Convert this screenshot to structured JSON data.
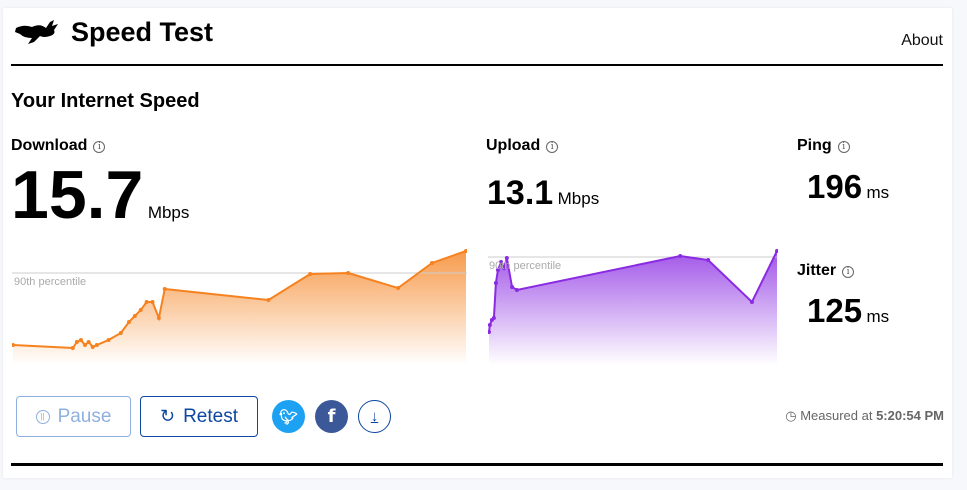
{
  "header": {
    "title": "Speed Test",
    "about": "About",
    "logo": "running-rabbit-icon"
  },
  "section_title": "Your Internet Speed",
  "download": {
    "label": "Download",
    "value": "15.7",
    "unit": "Mbps",
    "percentile_label": "90th percentile"
  },
  "upload": {
    "label": "Upload",
    "value": "13.1",
    "unit": "Mbps",
    "percentile_label": "90th percentile"
  },
  "ping": {
    "label": "Ping",
    "value": "196",
    "unit": "ms"
  },
  "jitter": {
    "label": "Jitter",
    "value": "125",
    "unit": "ms"
  },
  "buttons": {
    "pause": "Pause",
    "retest": "Retest"
  },
  "measured": {
    "prefix": "Measured at",
    "time": "5:20:54 PM"
  },
  "colors": {
    "download": "#f5821f",
    "upload": "#8a2be2",
    "accent": "#0d47a1",
    "twitter": "#1da1f2",
    "facebook": "#3b5998"
  },
  "chart_data": [
    {
      "type": "area",
      "series": "download",
      "unit": "Mbps",
      "ylim": [
        0,
        15.7
      ],
      "percentile_90": 12.67,
      "x": [
        0,
        13.2,
        14.1,
        15,
        15.9,
        16.7,
        17.6,
        18.5,
        21.1,
        23.8,
        25.6,
        26.9,
        28.2,
        29.5,
        30.8,
        32.2,
        33.5,
        56.4,
        65.6,
        74,
        85,
        92.5,
        100
      ],
      "values": [
        2.75,
        2.34,
        3.17,
        3.44,
        2.75,
        3.17,
        2.48,
        2.75,
        3.44,
        4.41,
        5.92,
        6.75,
        7.57,
        8.68,
        8.68,
        6.47,
        10.47,
        8.95,
        12.53,
        12.67,
        10.6,
        14.05,
        15.7
      ]
    },
    {
      "type": "area",
      "series": "upload",
      "unit": "Mbps",
      "ylim": [
        0,
        13.1
      ],
      "percentile_90": 12.41,
      "x": [
        0,
        0.3,
        1,
        1.7,
        2.4,
        3.1,
        4.2,
        5.2,
        6.2,
        8,
        9.7,
        66.4,
        76.1,
        91.3,
        100
      ],
      "values": [
        3.79,
        4.6,
        5.17,
        5.4,
        9.42,
        10.92,
        11.83,
        11.15,
        12.29,
        8.96,
        8.62,
        12.52,
        12.06,
        7.24,
        13.1
      ]
    }
  ]
}
